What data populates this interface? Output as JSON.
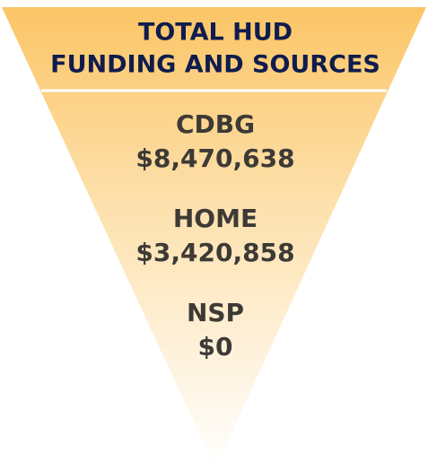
{
  "title": [
    "TOTAL HUD",
    "FUNDING AND SOURCES"
  ],
  "items": [
    {
      "name": "CDBG",
      "amount": "$8,470,638"
    },
    {
      "name": "HOME",
      "amount": "$3,420,858"
    },
    {
      "name": "NSP",
      "amount": "$0"
    }
  ]
}
